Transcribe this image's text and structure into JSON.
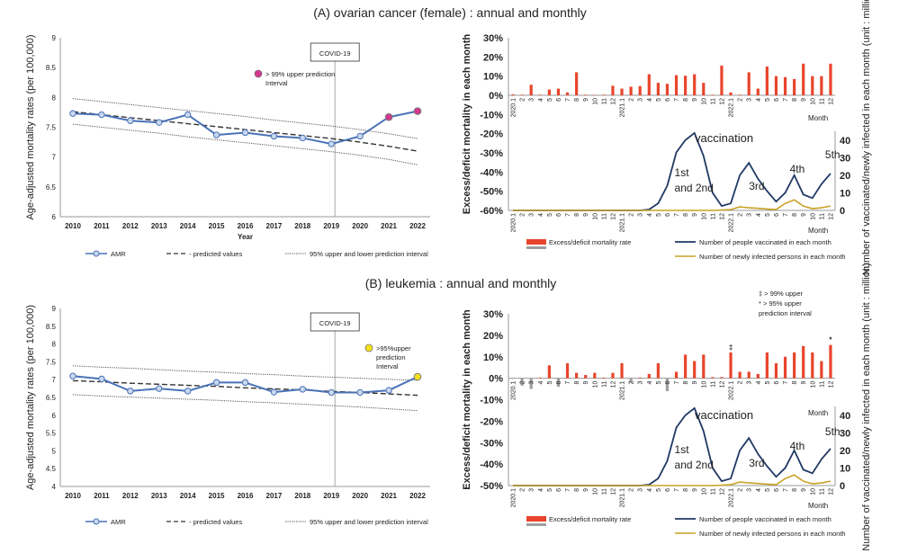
{
  "chart_data": [
    {
      "type": "line",
      "title": "(A) ovarian cancer (female) : annual and monthly",
      "ylabel": "Age-adjusted mortality rates (per 100,000)",
      "xlabel": "Year",
      "ylim": [
        6,
        9
      ],
      "yticks": [
        "6",
        "6.5",
        "7",
        "7.5",
        "8",
        "8.5",
        "9"
      ],
      "categories": [
        "2010",
        "2011",
        "2012",
        "2013",
        "2014",
        "2015",
        "2016",
        "2017",
        "2018",
        "2019",
        "2020",
        "2021",
        "2022"
      ],
      "covid_label": "COVID-19",
      "covid_year": "2019",
      "series": [
        {
          "name": "AMR",
          "values": [
            7.73,
            7.71,
            7.61,
            7.58,
            7.71,
            7.37,
            7.41,
            7.35,
            7.32,
            7.22,
            7.35,
            7.67,
            7.77
          ]
        },
        {
          "name": "predicted values",
          "values": [
            7.76,
            7.71,
            7.66,
            7.61,
            7.56,
            7.51,
            7.46,
            7.41,
            7.36,
            7.31,
            7.25,
            7.18,
            7.1
          ]
        },
        {
          "name": "95% upper and lower prediction interval",
          "upper": [
            7.98,
            7.93,
            7.88,
            7.83,
            7.78,
            7.73,
            7.68,
            7.62,
            7.57,
            7.52,
            7.46,
            7.39,
            7.31
          ],
          "lower": [
            7.55,
            7.5,
            7.45,
            7.4,
            7.34,
            7.29,
            7.24,
            7.19,
            7.14,
            7.09,
            7.03,
            6.96,
            6.87
          ]
        }
      ],
      "marker_legend": "> 99% upper prediction Interval",
      "marker_color": "#d6388f",
      "highlight_points": [
        11,
        12
      ],
      "legend_labels": [
        "AMR",
        "- predicted values",
        "95% upper and lower prediction interval"
      ]
    },
    {
      "type": "bar",
      "title": "",
      "ylabel": "Excess/deficit mortality in each month",
      "y2label": "Number of vaccinated/newly infected in each month (unit : million)",
      "xlabel": "Month",
      "ylim": [
        -60,
        30
      ],
      "yticks": [
        "30%",
        "20%",
        "10%",
        "0%",
        "-10%",
        "-20%",
        "-30%",
        "-40%",
        "-50%",
        "-60%"
      ],
      "y2ticks": [
        "0",
        "10",
        "20",
        "30",
        "40"
      ],
      "month_labels": [
        "2020.1",
        "2",
        "3",
        "4",
        "5",
        "6",
        "7",
        "8",
        "9",
        "10",
        "11",
        "12",
        "2021.1",
        "2",
        "3",
        "4",
        "5",
        "6",
        "7",
        "8",
        "9",
        "10",
        "11",
        "12",
        "2022.1",
        "2",
        "3",
        "4",
        "5",
        "6",
        "7",
        "8",
        "9",
        "10",
        "11",
        "12"
      ],
      "bar_color": "#e8452c",
      "deficit_color": "#9e9e9e",
      "bars": [
        0.5,
        0.3,
        5.5,
        0.3,
        3.0,
        3.5,
        1.5,
        12.0,
        0.3,
        0.2,
        0.3,
        5.0,
        3.5,
        4.5,
        4.8,
        11.0,
        6.5,
        6.0,
        10.5,
        10.2,
        11.0,
        6.5,
        0.3,
        15.5,
        1.5,
        0.3,
        12.0,
        3.5,
        15.0,
        10.0,
        9.5,
        8.5,
        16.5,
        10.0,
        10.0,
        16.5
      ],
      "vaccinated_million": [
        0,
        0,
        0,
        0,
        0,
        0,
        0,
        0,
        0,
        0,
        0,
        0,
        0,
        0,
        0,
        0.5,
        4.0,
        14.0,
        33.0,
        40.0,
        44.0,
        31.0,
        10.0,
        2.5,
        4.0,
        20.0,
        27.0,
        18.0,
        11.0,
        5.0,
        10.0,
        20.0,
        9.0,
        7.0,
        15.0,
        21.0
      ],
      "infected_million": [
        0,
        0,
        0,
        0,
        0,
        0,
        0,
        0,
        0,
        0,
        0,
        0,
        0,
        0,
        0,
        0,
        0,
        0,
        0,
        0,
        0,
        0,
        0,
        0.2,
        0.5,
        2.0,
        1.5,
        1.2,
        0.8,
        0.5,
        4.0,
        6.0,
        2.5,
        1.0,
        1.5,
        2.5
      ],
      "annotations": [
        "vaccination",
        "1st",
        "and 2nd",
        "3rd",
        "4th",
        "5th"
      ],
      "legend_labels": [
        "Excess/deficit mortality rate",
        "Number of people vaccinated in each month",
        "Number of newly infected persons in each month"
      ]
    },
    {
      "type": "line",
      "title": "(B) leukemia : annual and monthly",
      "ylabel": "Age-adjusted mortality rates (per 100,000)",
      "xlabel": "",
      "ylim": [
        4,
        9
      ],
      "yticks": [
        "4",
        "4.5",
        "5",
        "5.5",
        "6",
        "6.5",
        "7",
        "7.5",
        "8",
        "8.5",
        "9"
      ],
      "categories": [
        "2010",
        "2011",
        "2012",
        "2013",
        "2014",
        "2015",
        "2016",
        "2017",
        "2018",
        "2019",
        "2020",
        "2021",
        "2022"
      ],
      "covid_label": "COVID-19",
      "covid_year": "2019",
      "series": [
        {
          "name": "AMR",
          "values": [
            7.1,
            7.02,
            6.68,
            6.75,
            6.68,
            6.92,
            6.92,
            6.65,
            6.73,
            6.64,
            6.64,
            6.7,
            7.08
          ]
        },
        {
          "name": "predicted values",
          "values": [
            6.97,
            6.94,
            6.9,
            6.87,
            6.84,
            6.81,
            6.77,
            6.74,
            6.71,
            6.67,
            6.64,
            6.6,
            6.56
          ]
        },
        {
          "name": "95% upper and lower prediction interval",
          "upper": [
            7.39,
            7.35,
            7.32,
            7.28,
            7.24,
            7.21,
            7.17,
            7.14,
            7.1,
            7.07,
            7.04,
            7.01,
            6.98
          ],
          "lower": [
            6.58,
            6.54,
            6.51,
            6.48,
            6.45,
            6.42,
            6.38,
            6.35,
            6.31,
            6.27,
            6.23,
            6.18,
            6.13
          ]
        }
      ],
      "marker_legend": ">95%upper prediction Interval",
      "marker_color": "#f5e11a",
      "highlight_points": [
        12
      ],
      "legend_labels": [
        "AMR",
        "- predicted values",
        "95% upper and lower prediction interval"
      ]
    },
    {
      "type": "bar",
      "title": "",
      "ylabel": "Excess/deficit mortality in each month",
      "y2label": "Number of vaccinated/newly infected in each month (unit : million)",
      "xlabel": "Month",
      "ylim": [
        -50,
        30
      ],
      "yticks": [
        "30%",
        "20%",
        "10%",
        "0%",
        "-10%",
        "-20%",
        "-30%",
        "-40%",
        "-50%"
      ],
      "y2ticks": [
        "0",
        "10",
        "20",
        "30",
        "40"
      ],
      "month_labels": [
        "2020.1",
        "2",
        "3",
        "4",
        "5",
        "6",
        "7",
        "8",
        "9",
        "10",
        "11",
        "12",
        "2021.1",
        "2",
        "3",
        "4",
        "5",
        "6",
        "7",
        "8",
        "9",
        "10",
        "11",
        "12",
        "2022.1",
        "2",
        "3",
        "4",
        "5",
        "6",
        "7",
        "8",
        "9",
        "10",
        "11",
        "12"
      ],
      "bar_color": "#e8452c",
      "deficit_color": "#9e9e9e",
      "bars": [
        -0.3,
        -3.5,
        -5.0,
        0.3,
        6.0,
        -4.0,
        7.0,
        2.5,
        1.5,
        2.5,
        0.3,
        2.5,
        7.0,
        -2.0,
        0.3,
        2.0,
        7.0,
        -6.0,
        3.0,
        11.0,
        8.0,
        11.0,
        0.5,
        0.5,
        12.0,
        3.0,
        3.0,
        2.0,
        12.0,
        7.0,
        10.0,
        12.0,
        15.0,
        12.0,
        8.0,
        15.5
      ],
      "vaccinated_million": [
        0,
        0,
        0,
        0,
        0,
        0,
        0,
        0,
        0,
        0,
        0,
        0,
        0,
        0,
        0,
        0.5,
        4.0,
        14.0,
        33.0,
        40.0,
        44.0,
        31.0,
        10.0,
        2.5,
        4.0,
        20.0,
        27.0,
        18.0,
        11.0,
        5.0,
        10.0,
        20.0,
        9.0,
        7.0,
        15.0,
        21.0
      ],
      "infected_million": [
        0,
        0,
        0,
        0,
        0,
        0,
        0,
        0,
        0,
        0,
        0,
        0,
        0,
        0,
        0,
        0,
        0,
        0,
        0,
        0,
        0,
        0,
        0,
        0.2,
        0.5,
        2.0,
        1.5,
        1.2,
        0.8,
        0.5,
        4.0,
        6.0,
        2.5,
        1.0,
        1.5,
        2.5
      ],
      "annotations": [
        "vaccination",
        "1st",
        "and 2nd",
        "3rd",
        "4th",
        "5th"
      ],
      "significance_legend": [
        "‡ > 99% upper",
        "* > 95% upper",
        "prediction interval"
      ],
      "significance_marks": [
        {
          "month": 24,
          "mark": "‡"
        },
        {
          "month": 35,
          "mark": "*"
        }
      ],
      "legend_labels": [
        "Excess/deficit mortality rate",
        "Number of people vaccinated in each month",
        "Number of newly infected persons in each month"
      ]
    }
  ]
}
